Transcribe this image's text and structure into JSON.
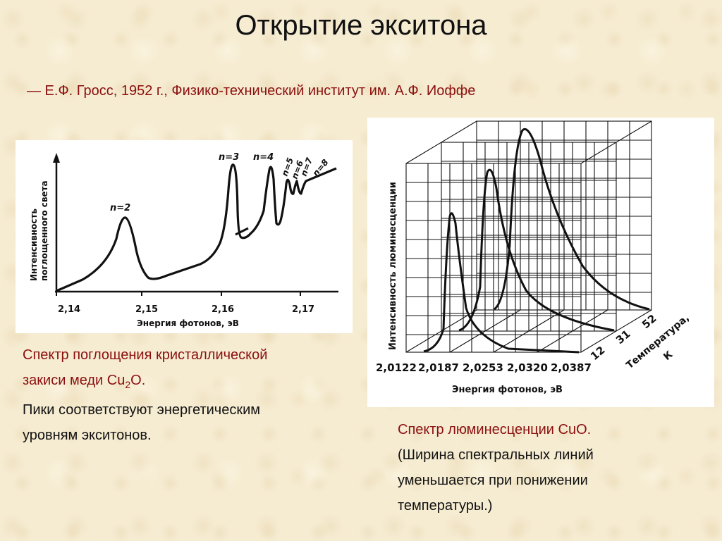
{
  "slide": {
    "title": "Открытие экситона",
    "subtitle": "— Е.Ф. Гросс, 1952 г., Физико-технический институт им. А.Ф. Иоффе"
  },
  "absorption_figure": {
    "ylabel_line1": "Интенсивность",
    "ylabel_line2": "поглощенного света",
    "xlabel": "Энергия фотонов, эВ",
    "ticks": [
      "2,14",
      "2,15",
      "2,16",
      "2,17"
    ],
    "peaks": [
      "n=2",
      "n=3",
      "n=4",
      "n=5",
      "n=6",
      "n=7",
      "n=8"
    ]
  },
  "luminescence_figure": {
    "ylabel": "Интенсивность люминесценции",
    "xlabel": "Энергия фотонов, эВ",
    "ticks": [
      "2,0122",
      "2,0187",
      "2,0253",
      "2,0320",
      "2,0387"
    ],
    "temps": [
      "12",
      "31",
      "52"
    ],
    "temp_label_line1": "Температура,",
    "temp_label_line2": "К"
  },
  "caption_left": {
    "line1": "Спектр поглощения кристаллической",
    "line2_pre": "закиси меди Cu",
    "line2_sub": "2",
    "line2_post": "O.",
    "line3": "Пики соответствуют энергетическим",
    "line4": "уровням экситонов."
  },
  "caption_right": {
    "line1": "Спектр люминесценции CuO.",
    "line2": "(Ширина спектральных линий",
    "line3": "уменьшается при понижении",
    "line4": "температуры.)"
  },
  "colors": {
    "accent": "#8b0f0f",
    "text": "#111111",
    "background": "#f6ecd2"
  }
}
